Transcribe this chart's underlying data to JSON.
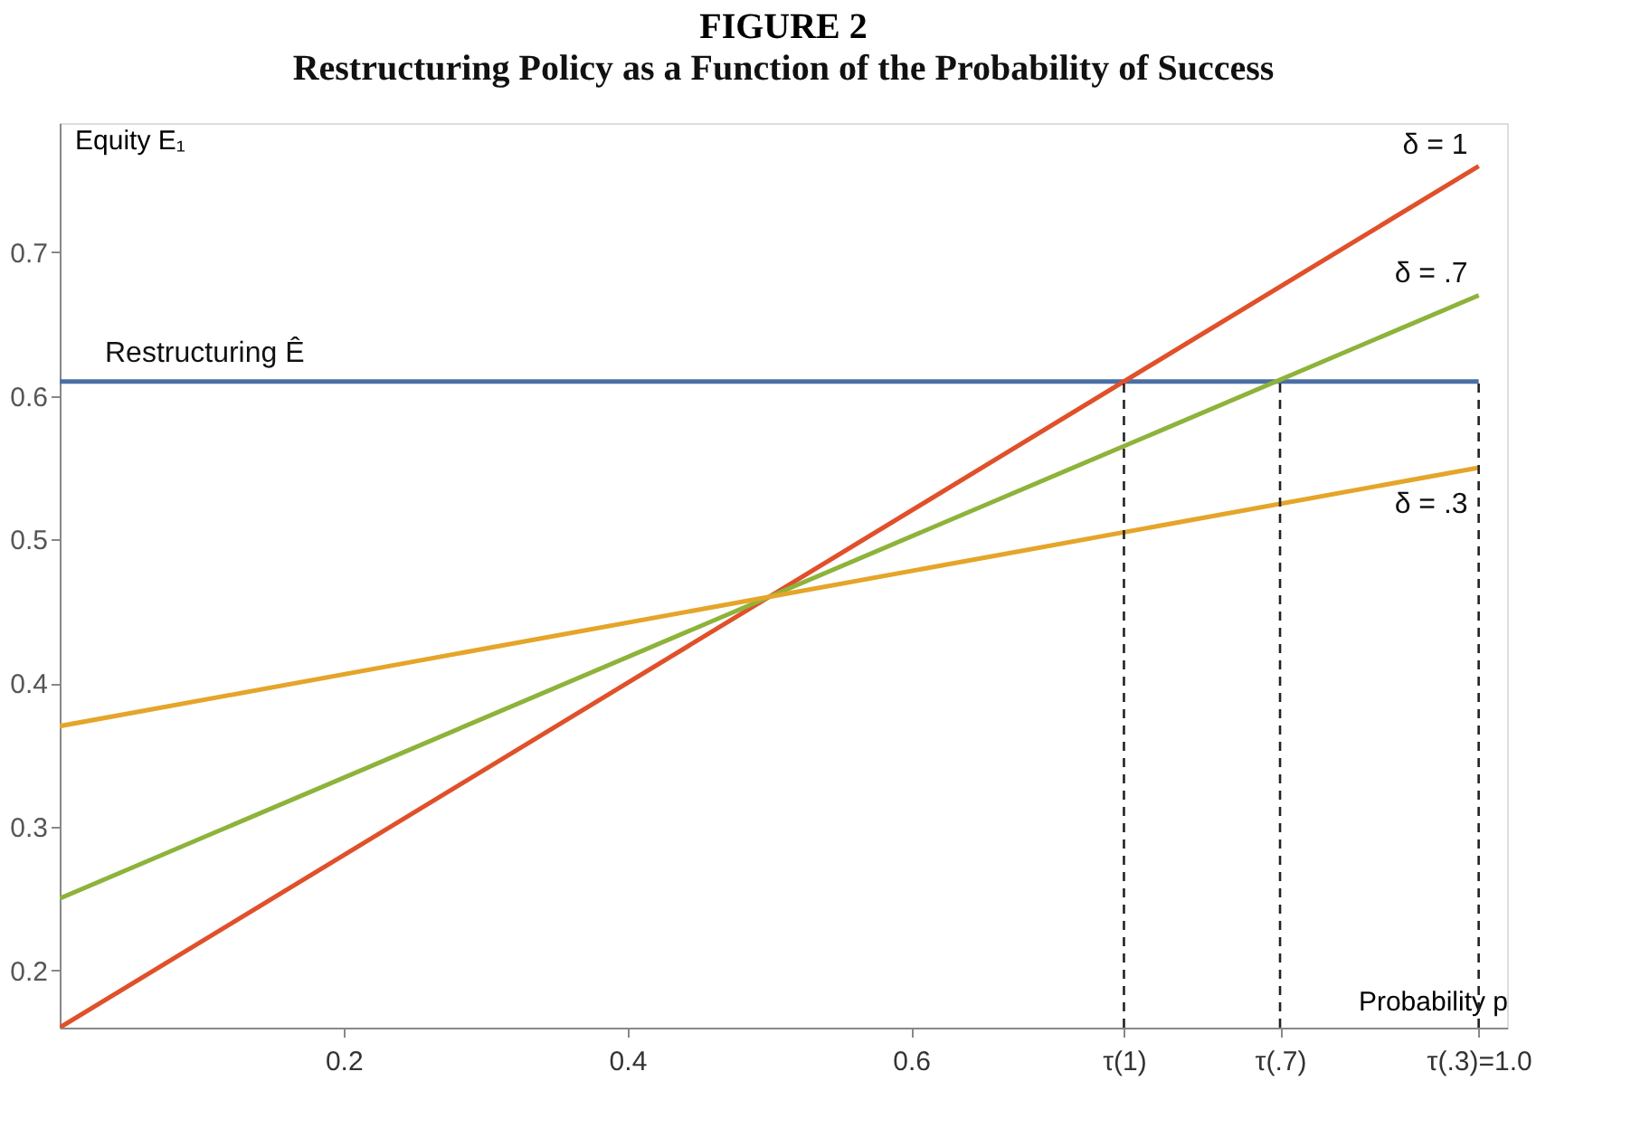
{
  "chart_data": {
    "type": "line",
    "title": "FIGURE 2",
    "subtitle": "Restructuring Policy as a Function of the Probability of Success",
    "xlabel": "Probability p",
    "ylabel": "Equity E₁",
    "x": [
      0,
      1.0
    ],
    "series": [
      {
        "name": "Restructuring Ê",
        "color": "#4a6fa5",
        "values": [
          0.61,
          0.61
        ]
      },
      {
        "name": "δ = 1",
        "color": "#e0502a",
        "values": [
          0.16,
          0.76
        ]
      },
      {
        "name": "δ = .7",
        "color": "#8db33a",
        "values": [
          0.25,
          0.67
        ]
      },
      {
        "name": "δ = .3",
        "color": "#e5a52a",
        "values": [
          0.37,
          0.55
        ]
      }
    ],
    "xlim": [
      0,
      1.02
    ],
    "ylim": [
      0.16,
      0.79
    ],
    "xticks": [
      0.2,
      0.4,
      0.6,
      {
        "value": 0.75,
        "label": "τ(1)"
      },
      {
        "value": 0.86,
        "label": "τ(.7)"
      },
      {
        "value": 1.0,
        "label": "τ(.3)=1.0"
      }
    ],
    "yticks": [
      0.2,
      0.3,
      0.4,
      0.5,
      0.6,
      0.7
    ],
    "ref_lines": [
      {
        "axis": "x",
        "value": 0.75,
        "line_style": "dashed",
        "color": "#222222"
      },
      {
        "axis": "x",
        "value": 0.86,
        "line_style": "dashed",
        "color": "#222222"
      },
      {
        "axis": "x",
        "value": 1.0,
        "line_style": "dashed",
        "color": "#222222"
      }
    ],
    "grid": false,
    "legend": false,
    "marker": "none",
    "line_style": "solid"
  }
}
